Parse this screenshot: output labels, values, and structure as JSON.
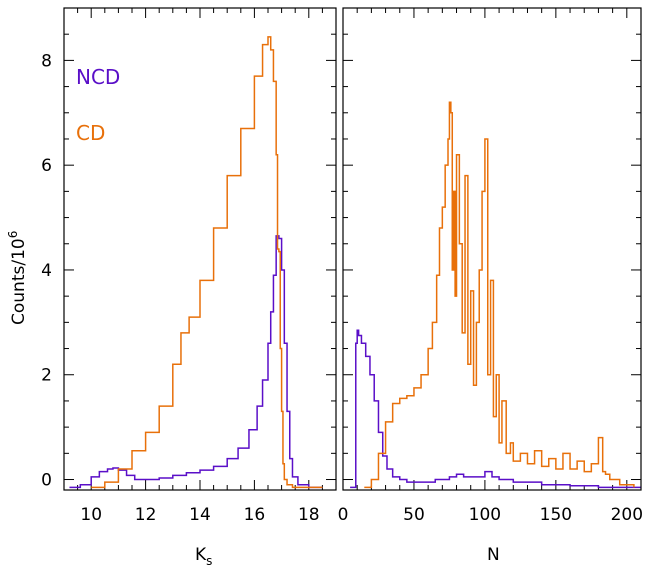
{
  "chart_data": [
    {
      "type": "line",
      "panel": "left",
      "xlabel": "K",
      "xlabel_sub": "s",
      "ylabel": "Counts/10",
      "ylabel_sup": "6",
      "xlim": [
        9,
        19
      ],
      "ylim": [
        -0.2,
        9.0
      ],
      "xticks": [
        10,
        12,
        14,
        16,
        18
      ],
      "yticks": [
        0,
        2,
        4,
        6,
        8
      ],
      "legend": [
        {
          "label": "NCD",
          "color": "#5a0fc8"
        },
        {
          "label": "CD",
          "color": "#e8700a"
        }
      ],
      "series": [
        {
          "name": "NCD",
          "color": "#5a0fc8",
          "x": [
            9.2,
            9.6,
            10.0,
            10.3,
            10.6,
            10.8,
            11.0,
            11.3,
            11.6,
            12.0,
            12.5,
            13.0,
            13.5,
            14.0,
            14.5,
            15.0,
            15.4,
            15.8,
            16.1,
            16.3,
            16.5,
            16.6,
            16.7,
            16.8,
            16.9,
            17.0,
            17.1,
            17.2,
            17.3,
            17.4,
            17.6,
            18.0,
            18.5
          ],
          "y": [
            -0.15,
            -0.1,
            0.05,
            0.15,
            0.2,
            0.22,
            0.18,
            0.08,
            0.0,
            0.0,
            0.03,
            0.08,
            0.13,
            0.18,
            0.25,
            0.4,
            0.6,
            0.95,
            1.4,
            1.9,
            2.6,
            3.2,
            3.9,
            4.65,
            4.6,
            4.0,
            2.6,
            1.3,
            0.4,
            0.05,
            -0.1,
            -0.15,
            -0.15
          ]
        },
        {
          "name": "CD",
          "color": "#e8700a",
          "x": [
            10.0,
            10.5,
            11.0,
            11.5,
            12.0,
            12.5,
            13.0,
            13.3,
            13.6,
            14.0,
            14.5,
            15.0,
            15.5,
            16.0,
            16.3,
            16.5,
            16.6,
            16.7,
            16.8,
            16.85,
            16.9,
            16.95,
            17.0,
            17.05,
            17.1,
            17.2,
            17.4,
            17.6,
            18.0,
            18.5
          ],
          "y": [
            -0.15,
            -0.05,
            0.2,
            0.55,
            0.9,
            1.4,
            2.2,
            2.8,
            3.1,
            3.8,
            4.8,
            5.8,
            6.7,
            7.7,
            8.3,
            8.45,
            8.2,
            7.6,
            6.2,
            4.4,
            4.35,
            2.5,
            1.3,
            0.3,
            0.0,
            -0.1,
            -0.15,
            -0.15,
            -0.15,
            -0.15
          ]
        }
      ]
    },
    {
      "type": "line",
      "panel": "right",
      "xlabel": "N",
      "xlim": [
        0,
        210
      ],
      "ylim": [
        -0.2,
        9.0
      ],
      "xticks": [
        0,
        50,
        100,
        150,
        200
      ],
      "series": [
        {
          "name": "NCD",
          "color": "#5a0fc8",
          "x": [
            5,
            8,
            9,
            10,
            11,
            13,
            16,
            19,
            22,
            25,
            28,
            31,
            35,
            40,
            45,
            55,
            65,
            75,
            80,
            85,
            90,
            95,
            100,
            105,
            110,
            120,
            140,
            160,
            180,
            210
          ],
          "y": [
            -0.15,
            -0.15,
            2.6,
            2.85,
            2.75,
            2.6,
            2.35,
            2.0,
            1.5,
            0.9,
            0.45,
            0.2,
            0.05,
            0.0,
            -0.05,
            -0.05,
            0.0,
            0.05,
            0.1,
            0.05,
            0.05,
            0.05,
            0.15,
            0.05,
            0.0,
            -0.05,
            -0.1,
            -0.12,
            -0.15,
            -0.15
          ]
        },
        {
          "name": "CD",
          "color": "#e8700a",
          "x": [
            15,
            20,
            25,
            30,
            35,
            40,
            45,
            50,
            55,
            60,
            63,
            66,
            68,
            70,
            72,
            74,
            75,
            76,
            77,
            78,
            79,
            80,
            82,
            84,
            86,
            88,
            90,
            92,
            94,
            96,
            98,
            100,
            102,
            104,
            106,
            108,
            110,
            112,
            115,
            118,
            120,
            125,
            130,
            135,
            140,
            145,
            150,
            155,
            160,
            165,
            170,
            175,
            180,
            183,
            185,
            188,
            195,
            205
          ],
          "y": [
            -0.15,
            0.0,
            0.5,
            1.1,
            1.45,
            1.55,
            1.6,
            1.75,
            2.0,
            2.5,
            3.0,
            3.9,
            4.8,
            5.2,
            6.0,
            6.5,
            7.2,
            7.0,
            4.0,
            5.5,
            3.5,
            6.2,
            4.5,
            2.8,
            5.8,
            2.2,
            3.6,
            1.8,
            3.0,
            4.0,
            5.5,
            6.5,
            2.0,
            3.8,
            1.2,
            2.0,
            0.7,
            1.5,
            0.5,
            0.7,
            0.35,
            0.5,
            0.3,
            0.55,
            0.25,
            0.4,
            0.2,
            0.5,
            0.2,
            0.35,
            0.15,
            0.3,
            0.8,
            0.15,
            0.1,
            0.0,
            -0.1,
            -0.15
          ]
        }
      ]
    }
  ]
}
